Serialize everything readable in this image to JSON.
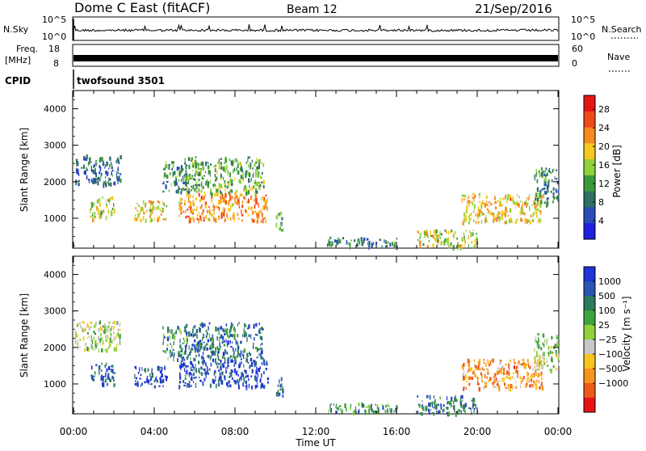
{
  "header": {
    "station": "Dome C East (fitACF)",
    "beam": "Beam 12",
    "date": "21/Sep/2016"
  },
  "strip_labels": {
    "nsky": "N.Sky",
    "nsky_ticks": [
      "10^5",
      "10^0"
    ],
    "nsearch": "N.Search",
    "nsearch_ticks": [
      "10^5",
      "10^0"
    ],
    "freq_label_1": "Freq.",
    "freq_label_2": "[MHz]",
    "freq_ticks": [
      "18",
      "8"
    ],
    "nave": "Nave",
    "nave_ticks": [
      "60",
      "0"
    ],
    "cpid": "CPID",
    "cpid_value": "twofsound 3501"
  },
  "chart_data": [
    {
      "type": "heatmap",
      "panel": "power",
      "ylabel": "Slant Range [km]",
      "ylim": [
        180,
        4500
      ],
      "yticks": [
        "1000",
        "2000",
        "3000",
        "4000"
      ],
      "xlim": [
        0,
        24
      ],
      "colorbar": {
        "label": "Power [dB]",
        "ticks": [
          "4",
          "8",
          "12",
          "16",
          "20",
          "24",
          "28"
        ],
        "range": [
          0,
          31
        ],
        "colors": [
          "#1f1fe0",
          "#2a4cb8",
          "#2f7060",
          "#3a9a3a",
          "#8fd23a",
          "#f4c81e",
          "#f78a1e",
          "#ef4a1a",
          "#e61414"
        ]
      },
      "echo_regions": [
        {
          "t": [
            0.05,
            2.3
          ],
          "r": [
            1950,
            2750
          ],
          "level": 0.25
        },
        {
          "t": [
            0.8,
            2.0
          ],
          "r": [
            1000,
            1600
          ],
          "level": 0.55
        },
        {
          "t": [
            3.0,
            4.6
          ],
          "r": [
            950,
            1500
          ],
          "level": 0.6
        },
        {
          "t": [
            4.4,
            5.6
          ],
          "r": [
            1700,
            2600
          ],
          "level": 0.3
        },
        {
          "t": [
            5.2,
            9.6
          ],
          "r": [
            950,
            1700
          ],
          "level": 0.72
        },
        {
          "t": [
            5.5,
            9.4
          ],
          "r": [
            1700,
            2700
          ],
          "level": 0.42
        },
        {
          "t": [
            10.0,
            10.4
          ],
          "r": [
            700,
            1200
          ],
          "level": 0.45
        },
        {
          "t": [
            12.5,
            16.0
          ],
          "r": [
            250,
            500
          ],
          "level": 0.3
        },
        {
          "t": [
            17.0,
            20.0
          ],
          "r": [
            220,
            700
          ],
          "level": 0.55
        },
        {
          "t": [
            19.2,
            23.2
          ],
          "r": [
            900,
            1700
          ],
          "level": 0.62
        },
        {
          "t": [
            22.8,
            24.0
          ],
          "r": [
            1400,
            2400
          ],
          "level": 0.3
        }
      ]
    },
    {
      "type": "heatmap",
      "panel": "velocity",
      "ylabel": "Slant Range [km]",
      "ylim": [
        180,
        4500
      ],
      "yticks": [
        "1000",
        "2000",
        "3000",
        "4000"
      ],
      "xlim": [
        0,
        24
      ],
      "xticks": [
        "00:00",
        "04:00",
        "08:00",
        "12:00",
        "16:00",
        "20:00",
        "00:00"
      ],
      "xlabel": "Time UT",
      "colorbar": {
        "label": "Velocity [m s⁻¹]",
        "ticks": [
          "1000",
          "500",
          "100",
          "25",
          "−25",
          "−100",
          "−500",
          "−1000"
        ],
        "colors": [
          "#1f33d6",
          "#2a55b0",
          "#2e7a5c",
          "#3ea33c",
          "#8fd23a",
          "#c8c8c8",
          "#f7c51e",
          "#f7951e",
          "#ef5a1a",
          "#e61414"
        ]
      },
      "echo_regions": [
        {
          "t": [
            0.05,
            2.3
          ],
          "r": [
            1950,
            2750
          ],
          "level": 0.5
        },
        {
          "t": [
            0.8,
            2.0
          ],
          "r": [
            1000,
            1600
          ],
          "level": 0.15
        },
        {
          "t": [
            3.0,
            4.6
          ],
          "r": [
            950,
            1500
          ],
          "level": 0.12
        },
        {
          "t": [
            4.4,
            5.6
          ],
          "r": [
            1700,
            2600
          ],
          "level": 0.3
        },
        {
          "t": [
            5.2,
            9.6
          ],
          "r": [
            950,
            1700
          ],
          "level": 0.1
        },
        {
          "t": [
            5.5,
            9.4
          ],
          "r": [
            1700,
            2700
          ],
          "level": 0.2
        },
        {
          "t": [
            10.0,
            10.4
          ],
          "r": [
            700,
            1200
          ],
          "level": 0.15
        },
        {
          "t": [
            12.5,
            16.0
          ],
          "r": [
            250,
            500
          ],
          "level": 0.3
        },
        {
          "t": [
            17.0,
            20.0
          ],
          "r": [
            220,
            700
          ],
          "level": 0.2
        },
        {
          "t": [
            19.2,
            23.2
          ],
          "r": [
            900,
            1700
          ],
          "level": 0.75
        },
        {
          "t": [
            22.8,
            24.0
          ],
          "r": [
            1400,
            2400
          ],
          "level": 0.5
        }
      ]
    }
  ]
}
